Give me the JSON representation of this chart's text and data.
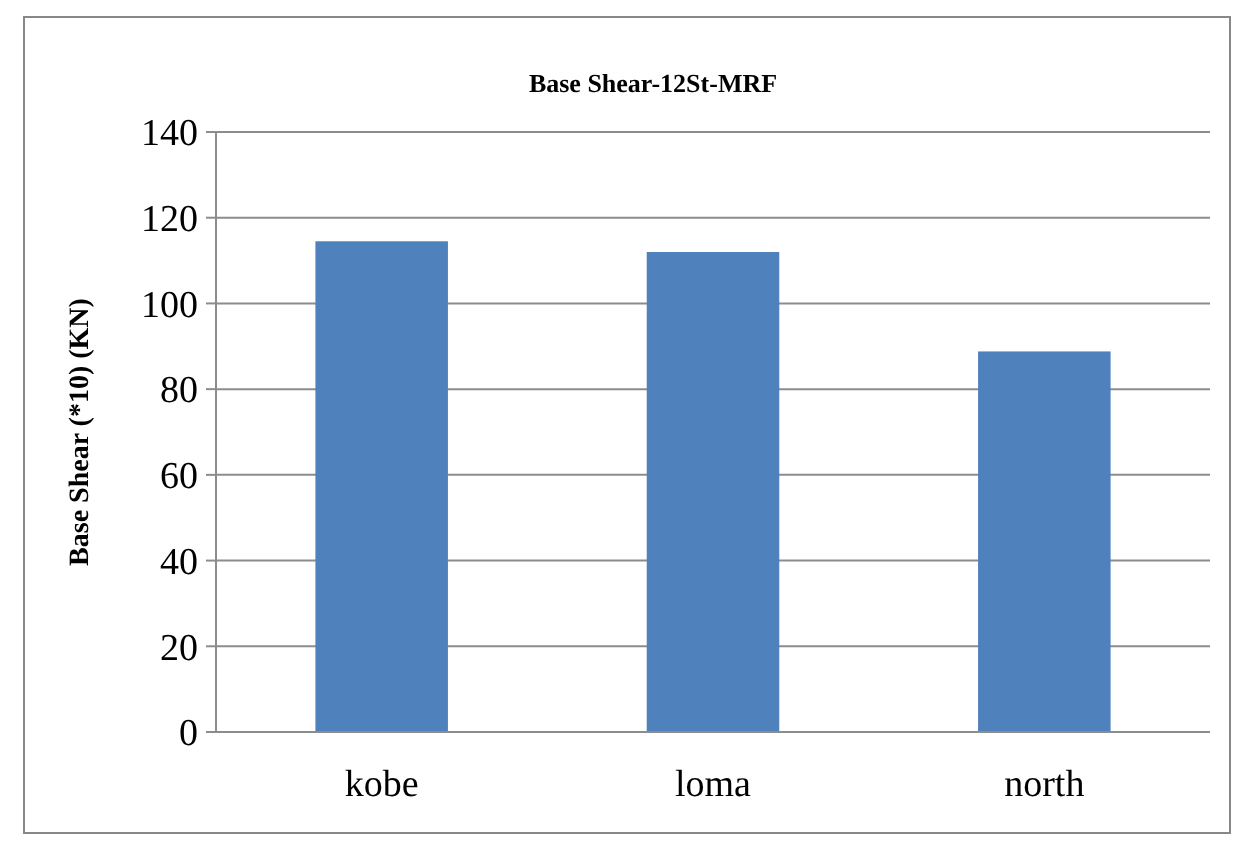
{
  "chart_data": {
    "type": "bar",
    "title": "Base Shear-12St-MRF",
    "ylabel": "Base Shear (*10) (KN)",
    "categories": [
      "kobe",
      "loma",
      "north"
    ],
    "values": [
      114.5,
      112,
      88.8
    ],
    "color": "#4f81bd",
    "ylim": [
      0,
      140
    ],
    "yticks": [
      0,
      20,
      40,
      60,
      80,
      100,
      120,
      140
    ],
    "grid": "y"
  }
}
